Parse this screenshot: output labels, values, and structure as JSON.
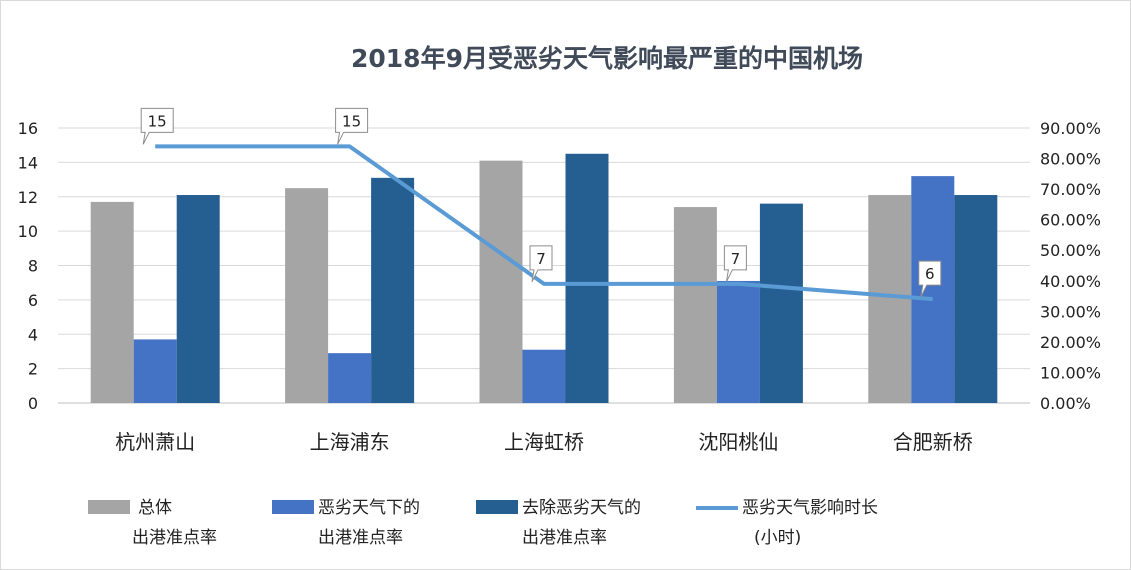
{
  "chart_data": {
    "type": "bar",
    "title": "2018年9月受恶劣天气影响最严重的中国机场",
    "categories": [
      "杭州萧山",
      "上海浦东",
      "上海虹桥",
      "沈阳桃仙",
      "合肥新桥"
    ],
    "series": [
      {
        "name": "总体出港准点率",
        "type": "bar",
        "axis": "left",
        "color": "#a5a5a5",
        "values": [
          11.7,
          12.5,
          14.1,
          11.4,
          12.1
        ]
      },
      {
        "name": "恶劣天气下的出港准点率",
        "type": "bar",
        "axis": "left",
        "color": "#4472c4",
        "values": [
          3.7,
          2.9,
          3.1,
          7.1,
          13.2
        ]
      },
      {
        "name": "去除恶劣天气的出港准点率",
        "type": "bar",
        "axis": "left",
        "color": "#255e91",
        "values": [
          12.1,
          13.1,
          14.5,
          11.6,
          12.1
        ]
      },
      {
        "name": "恶劣天气影响时长（小时）",
        "type": "line",
        "axis": "right",
        "color": "#5b9bd5",
        "values": [
          0.84,
          0.84,
          0.39,
          0.39,
          0.34
        ],
        "data_labels": [
          "15",
          "15",
          "7",
          "7",
          "6"
        ]
      }
    ],
    "y_left": {
      "ylim": [
        0,
        16
      ],
      "ticks": [
        "0",
        "2",
        "4",
        "6",
        "8",
        "10",
        "12",
        "14",
        "16"
      ]
    },
    "y_right": {
      "ylim": [
        0,
        0.9
      ],
      "ticks": [
        "0.00%",
        "10.00%",
        "20.00%",
        "30.00%",
        "40.00%",
        "50.00%",
        "60.00%",
        "70.00%",
        "80.00%",
        "90.00%"
      ]
    },
    "grid": true,
    "legend_position": "bottom"
  },
  "legend": [
    {
      "line1": "总体",
      "line2": "出港准点率",
      "color": "#a5a5a5",
      "kind": "bar"
    },
    {
      "line1": "恶劣天气下的",
      "line2": "出港准点率",
      "color": "#4472c4",
      "kind": "bar"
    },
    {
      "line1": "去除恶劣天气的",
      "line2": "出港准点率",
      "color": "#255e91",
      "kind": "bar"
    },
    {
      "line1": "恶劣天气影响时长",
      "line2": "(小时)",
      "color": "#5b9bd5",
      "kind": "line"
    }
  ]
}
